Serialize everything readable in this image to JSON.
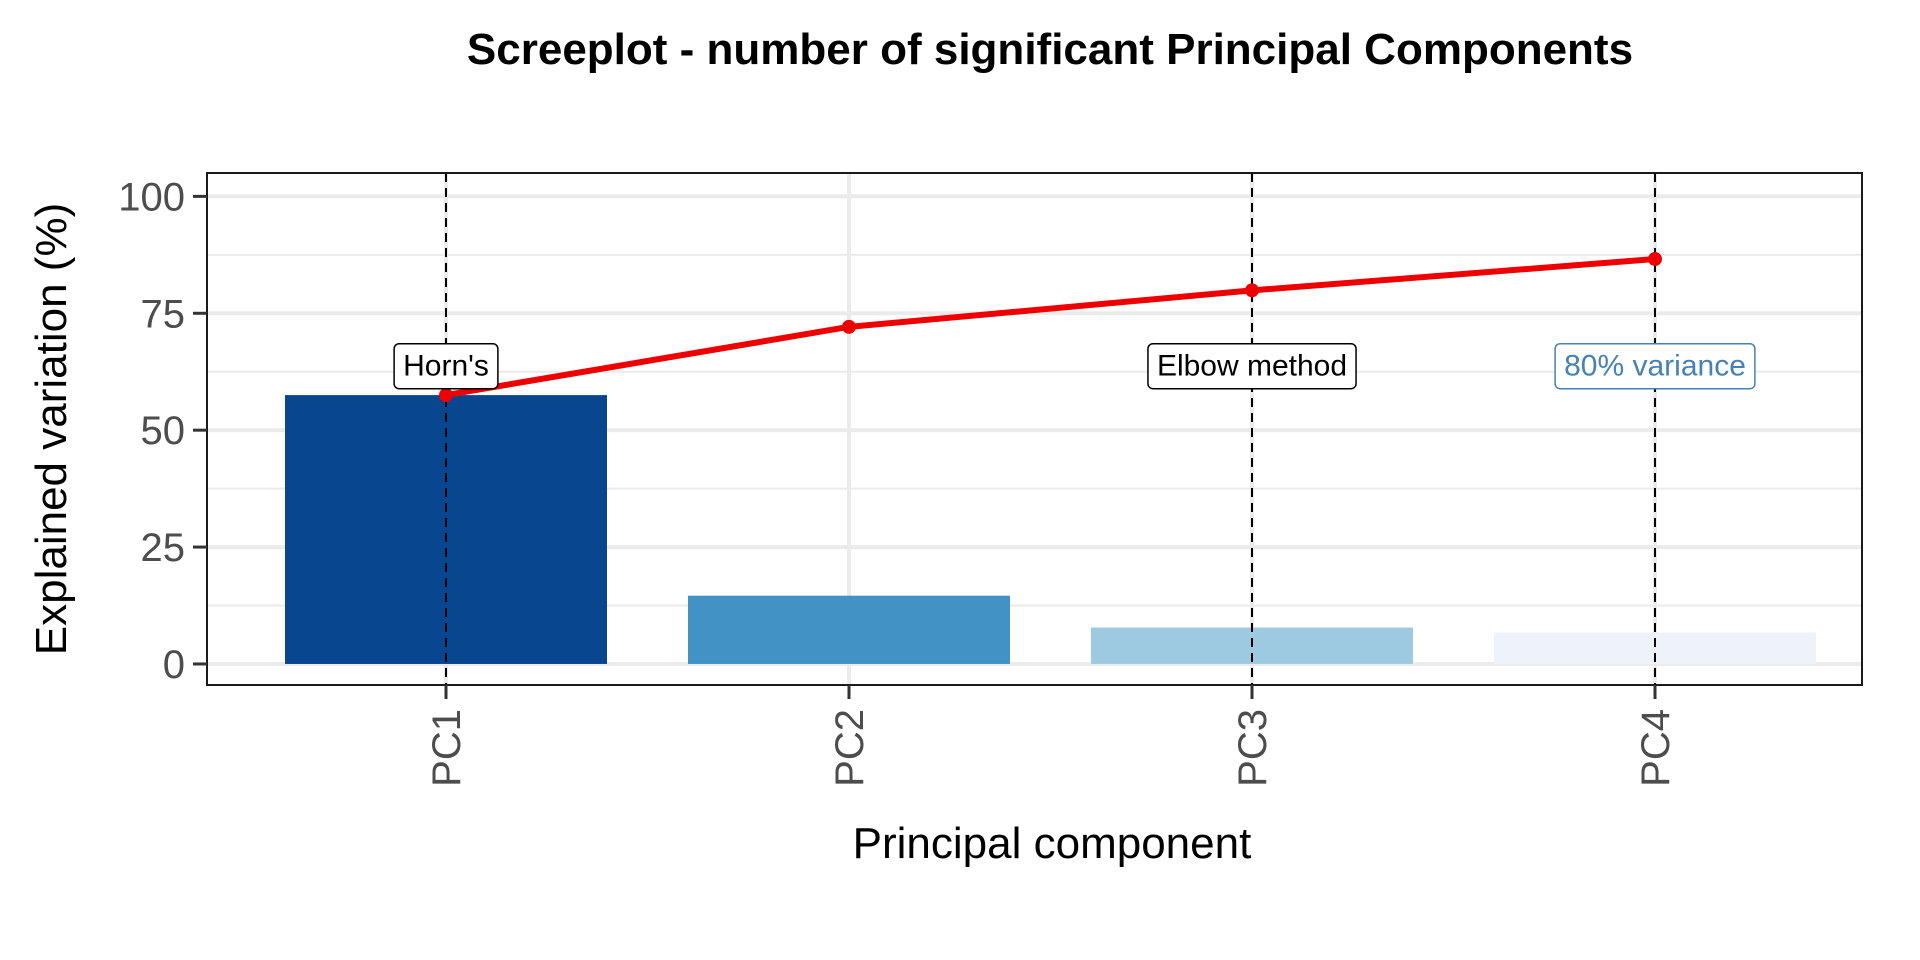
{
  "chart_data": {
    "type": "bar",
    "title": "Screeplot - number of significant Principal Components",
    "xlabel": "Principal component",
    "ylabel": "Explained variation (%)",
    "categories": [
      "PC1",
      "PC2",
      "PC3",
      "PC4"
    ],
    "bar_values": [
      57.5,
      14.6,
      7.8,
      6.7
    ],
    "bar_colors": [
      "#08468F",
      "#4292C6",
      "#9ECAE1",
      "#EEF3FB"
    ],
    "cumulative_line": {
      "values": [
        57.5,
        72.1,
        79.9,
        86.6
      ],
      "color": "#EE0000"
    },
    "ylim": [
      -4.5,
      105
    ],
    "yticks": [
      0,
      25,
      50,
      75,
      100
    ],
    "grid": true,
    "annotations": [
      {
        "label": "Horn's",
        "component": "PC1",
        "y": 64,
        "color": "#000000"
      },
      {
        "label": "Elbow method",
        "component": "PC3",
        "y": 64,
        "color": "#000000"
      },
      {
        "label": "80% variance",
        "component": "PC4",
        "y": 64,
        "color": "#4682B4"
      }
    ],
    "vlines": [
      "PC1",
      "PC3",
      "PC4"
    ]
  }
}
